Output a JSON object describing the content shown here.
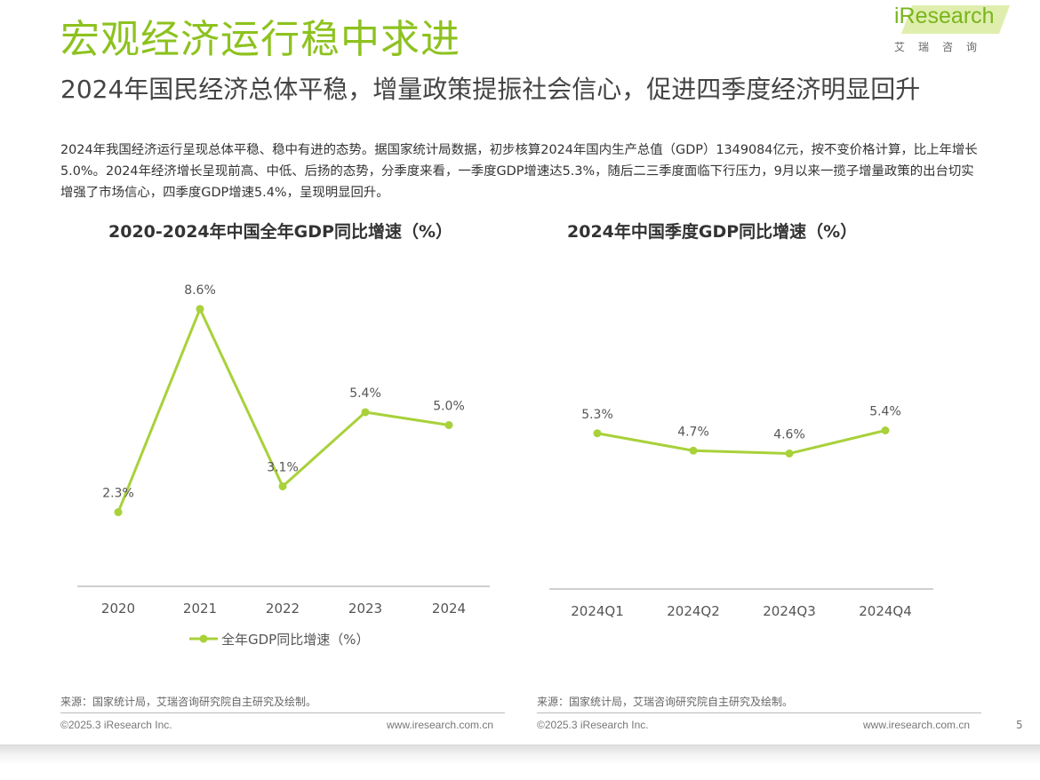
{
  "header": {
    "title": "宏观经济运行稳中求进",
    "subtitle": "2024年国民经济总体平稳，增量政策提振社会信心，促进四季度经济明显回升",
    "body": "2024年我国经济运行呈现总体平稳、稳中有进的态势。据国家统计局数据，初步核算2024年国内生产总值（GDP）1349084亿元，按不变价格计算，比上年增长5.0%。2024年经济增长呈现前高、中低、后扬的态势，分季度来看，一季度GDP增速达5.3%，随后二三季度面临下行压力，9月以来一揽子增量政策的出台切实增强了市场信心，四季度GDP增速5.4%，呈现明显回升。"
  },
  "logo": {
    "name": "iResearch",
    "subtitle": "艾瑞咨询"
  },
  "colors": {
    "accent": "#8dc21f",
    "series": "#a8d13a",
    "axis": "#bfbfbf"
  },
  "chart_data": [
    {
      "type": "line",
      "title": "2020-2024年中国全年GDP同比增速（%）",
      "categories": [
        "2020",
        "2021",
        "2022",
        "2023",
        "2024"
      ],
      "series": [
        {
          "name": "全年GDP同比增速（%）",
          "values": [
            2.3,
            8.6,
            3.1,
            5.4,
            5.0
          ]
        }
      ],
      "data_labels": [
        "2.3%",
        "8.6%",
        "3.1%",
        "5.4%",
        "5.0%"
      ],
      "ylim": [
        0,
        10
      ],
      "legend": "bottom",
      "grid": false
    },
    {
      "type": "line",
      "title": "2024年中国季度GDP同比增速（%）",
      "categories": [
        "2024Q1",
        "2024Q2",
        "2024Q3",
        "2024Q4"
      ],
      "series": [
        {
          "values": [
            5.3,
            4.7,
            4.6,
            5.4
          ]
        }
      ],
      "data_labels": [
        "5.3%",
        "4.7%",
        "4.6%",
        "5.4%"
      ],
      "ylim": [
        0,
        10
      ],
      "grid": false
    }
  ],
  "footer": {
    "source_left": "来源：国家统计局，艾瑞咨询研究院自主研究及绘制。",
    "source_right": "来源：国家统计局，艾瑞咨询研究院自主研究及绘制。",
    "copyright_left": "©2025.3 iResearch Inc.",
    "url_left": "www.iresearch.com.cn",
    "copyright_right": "©2025.3 iResearch Inc.",
    "url_right": "www.iresearch.com.cn",
    "page_number": "5"
  }
}
